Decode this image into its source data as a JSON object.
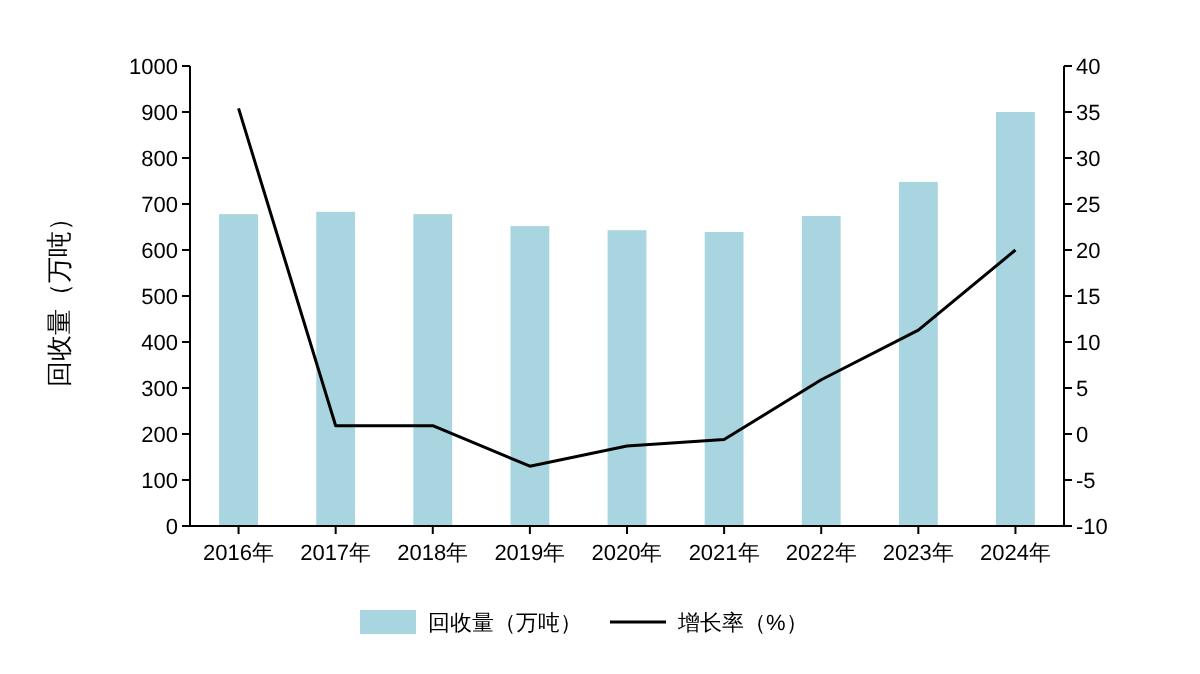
{
  "chart_data": {
    "type": "bar",
    "ylabel": "回收量（万吨）",
    "categories": [
      "2016年",
      "2017年",
      "2018年",
      "2019年",
      "2020年",
      "2021年",
      "2022年",
      "2023年",
      "2024年"
    ],
    "series": [
      {
        "name": "回收量（万吨）",
        "color": "#a8d5e0",
        "values": [
          678,
          683,
          678,
          652,
          643,
          639,
          674,
          748,
          900
        ]
      },
      {
        "name": "增长率（%）",
        "type": "line",
        "axis": "y2",
        "color": "#000000",
        "values": [
          35.4,
          0.9,
          0.9,
          -3.5,
          -1.3,
          -0.6,
          5.9,
          11.3,
          20
        ]
      }
    ],
    "ylim": [
      0,
      1000
    ],
    "yticks": [
      0,
      100,
      200,
      300,
      400,
      500,
      600,
      700,
      800,
      900,
      1000
    ],
    "y2lim": [
      -10,
      40
    ],
    "y2ticks": [
      -10,
      -5,
      0,
      5,
      10,
      15,
      20,
      25,
      30,
      35,
      40
    ],
    "grid": false,
    "legend": "bottom",
    "marker": "none",
    "line_style": "solid"
  }
}
